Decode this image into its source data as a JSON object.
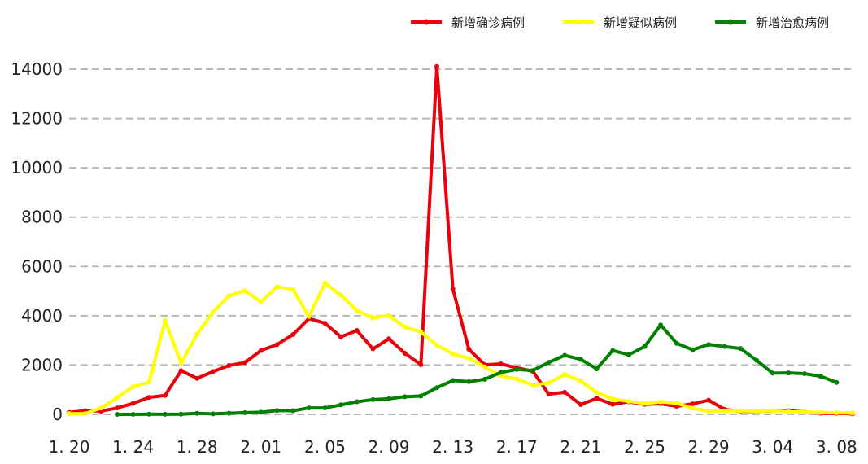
{
  "chart_data": {
    "type": "line",
    "title": "",
    "xlabel": "",
    "ylabel": "",
    "grid": "horizontal dashed",
    "legend_position": "top-right",
    "ylim": [
      0,
      14000
    ],
    "yticks": [
      0,
      2000,
      4000,
      6000,
      8000,
      10000,
      12000,
      14000
    ],
    "yticklabels": [
      "0",
      "2000",
      "4000",
      "6000",
      "8000",
      "10000",
      "12000",
      "14000"
    ],
    "xticks": [
      0,
      4,
      8,
      12,
      16,
      20,
      24,
      28,
      32,
      36,
      40,
      44,
      48
    ],
    "xticklabels": [
      "1. 20",
      "1. 24",
      "1. 28",
      "2. 01",
      "2. 05",
      "2. 09",
      "2. 13",
      "2. 17",
      "2. 21",
      "2. 25",
      "2. 29",
      "3. 04",
      "3. 08"
    ],
    "series": [
      {
        "name": "新增确诊病例",
        "color": "#e8000b",
        "start_index": 0,
        "values": [
          77,
          149,
          131,
          259,
          444,
          688,
          769,
          1771,
          1459,
          1737,
          1981,
          2102,
          2590,
          2829,
          3235,
          3887,
          3694,
          3143,
          3399,
          2656,
          3062,
          2478,
          2015,
          14108,
          5090,
          2641,
          2008,
          2048,
          1886,
          1749,
          820,
          894,
          397,
          648,
          409,
          508,
          406,
          433,
          327,
          427,
          573,
          202,
          125,
          119,
          139,
          143,
          99,
          44,
          40,
          19
        ]
      },
      {
        "name": "新增疑似病例",
        "color": "#ffff00",
        "start_index": 0,
        "values": [
          27,
          27,
          257,
          680,
          1118,
          1309,
          3806,
          2077,
          3248,
          4148,
          4812,
          5019,
          4562,
          5173,
          5072,
          3971,
          5328,
          4833,
          4214,
          3916,
          4008,
          3536,
          3342,
          2807,
          2450,
          2277,
          1918,
          1563,
          1432,
          1185,
          1277,
          1614,
          1361,
          882,
          620,
          530,
          439,
          508,
          452,
          248,
          132,
          141,
          143,
          129,
          143,
          102,
          99,
          74,
          60,
          50
        ]
      },
      {
        "name": "新增治愈病例",
        "color": "#008000",
        "start_index": 3,
        "values": [
          0,
          2,
          9,
          4,
          10,
          43,
          21,
          47,
          72,
          85,
          157,
          147,
          262,
          261,
          387,
          510,
          600,
          632,
          716,
          744,
          1081,
          1373,
          1323,
          1425,
          1701,
          1824,
          1779,
          2109,
          2393,
          2230,
          1846,
          2589,
          2415,
          2753,
          3622,
          2880,
          2618,
          2833,
          2749,
          2670,
          2189,
          1673,
          1681,
          1649,
          1547,
          1296
        ]
      }
    ]
  }
}
